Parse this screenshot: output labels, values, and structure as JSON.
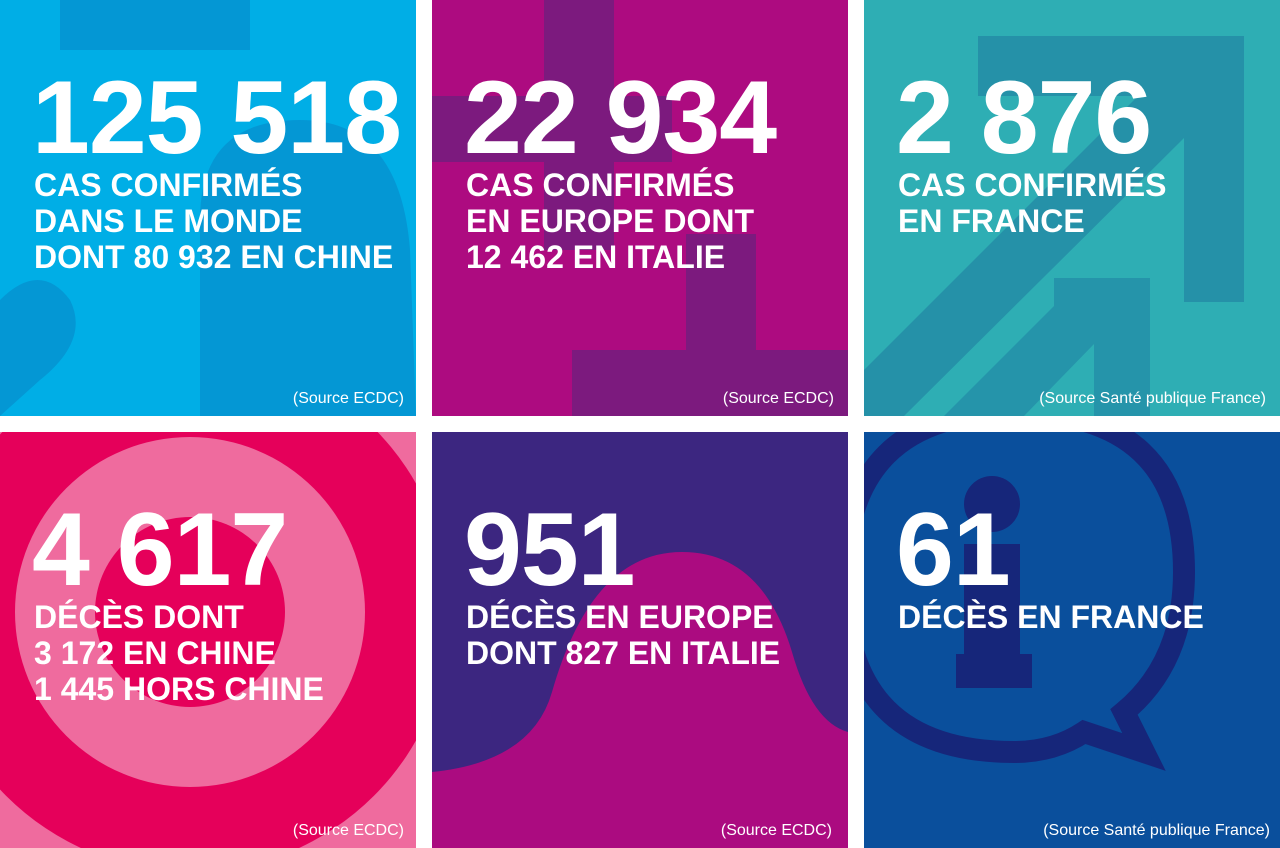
{
  "colors": {
    "tile1": "#00aee6",
    "tile2": "#ad0b80",
    "tile3": "#2eaeb4",
    "tile4": "#ef6b9e",
    "tile5": "#ab0b80",
    "tile6": "#0a4f9c"
  },
  "tiles": [
    {
      "number": "125 518",
      "lines": [
        "CAS CONFIRMÉS",
        "DANS LE MONDE",
        "DONT 80 932 EN CHINE"
      ],
      "source": "(Source ECDC)",
      "icon": "question-mark-icon"
    },
    {
      "number": "22 934",
      "lines": [
        "CAS CONFIRMÉS",
        "EN EUROPE DONT",
        "12 462 EN ITALIE"
      ],
      "source": "(Source ECDC)",
      "icon": "plus-icon"
    },
    {
      "number": "2 876",
      "lines": [
        "CAS CONFIRMÉS",
        "EN FRANCE"
      ],
      "source": "(Source Santé publique France)",
      "icon": "arrow-up-right-icon"
    },
    {
      "number": "4 617",
      "lines": [
        "DÉCÈS DONT",
        "3 172 EN CHINE",
        "1 445 HORS CHINE"
      ],
      "source": "(Source ECDC)",
      "icon": "target-icon"
    },
    {
      "number": "951",
      "lines": [
        "DÉCÈS EN EUROPE",
        "DONT 827 EN ITALIE"
      ],
      "source": "(Source ECDC)",
      "icon": "wave-icon"
    },
    {
      "number": "61",
      "lines": [
        "DÉCÈS EN FRANCE"
      ],
      "source": "(Source Santé publique France)",
      "icon": "info-bubble-icon"
    }
  ]
}
